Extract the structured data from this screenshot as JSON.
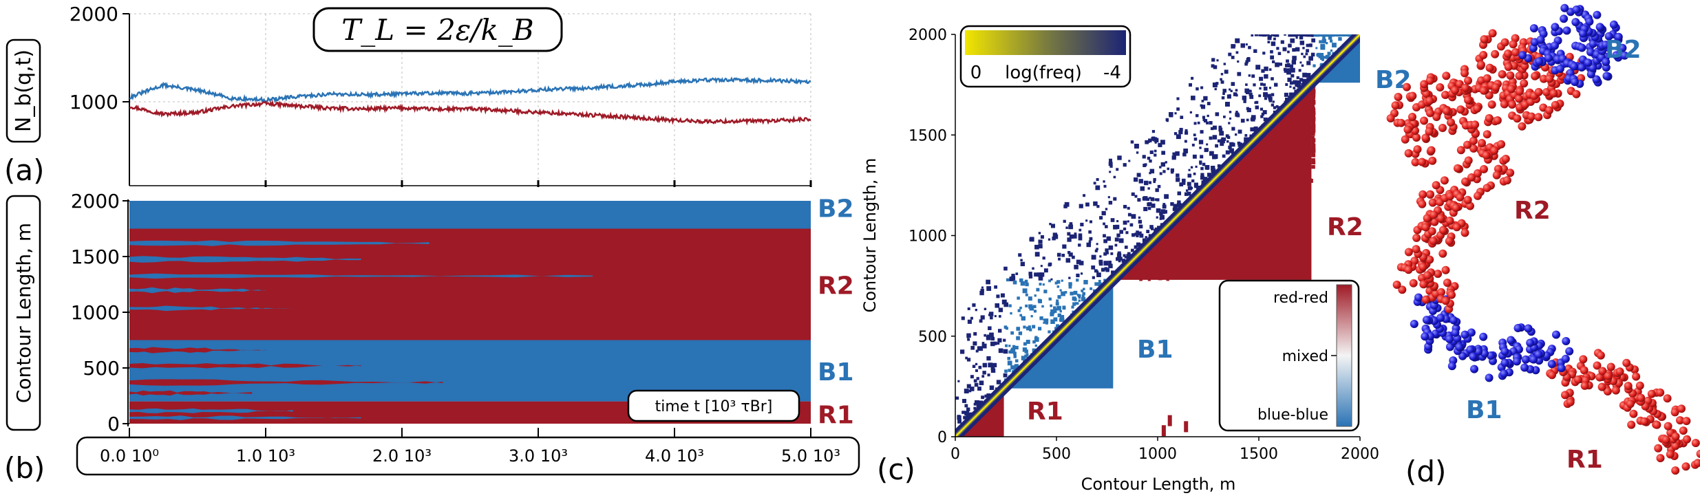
{
  "formula": {
    "title": "T_L = 2ε/k_B"
  },
  "panel_labels": {
    "a": "(a)",
    "b": "(b)",
    "c": "(c)",
    "d": "(d)"
  },
  "colors": {
    "red": "#9e1a26",
    "blue": "#2a73b5",
    "dark_navy": "#1c2475",
    "yellow": "#f2e600",
    "sim_red": "#e0201e",
    "sim_blue": "#1e1ed8"
  },
  "chart_data": [
    {
      "id": "a",
      "type": "line",
      "ylabel": "N_b(q,t)",
      "ylim": [
        0,
        2000
      ],
      "yticks": [
        "2000",
        "1000"
      ],
      "xlim": [
        0,
        5000
      ],
      "grid": true,
      "series": [
        {
          "name": "blue",
          "x": [
            0,
            250,
            500,
            750,
            1000,
            1250,
            1500,
            1750,
            2000,
            2250,
            2500,
            2750,
            3000,
            3250,
            3500,
            3750,
            4000,
            4250,
            4500,
            4750,
            5000
          ],
          "values": [
            1050,
            1190,
            1130,
            1040,
            1020,
            1060,
            1090,
            1080,
            1090,
            1100,
            1095,
            1110,
            1135,
            1150,
            1170,
            1190,
            1230,
            1250,
            1245,
            1240,
            1230
          ]
        },
        {
          "name": "red",
          "x": [
            0,
            250,
            500,
            750,
            1000,
            1250,
            1500,
            1750,
            2000,
            2250,
            2500,
            2750,
            3000,
            3250,
            3500,
            3750,
            4000,
            4250,
            4500,
            4750,
            5000
          ],
          "values": [
            950,
            860,
            880,
            950,
            980,
            950,
            925,
            920,
            930,
            915,
            920,
            900,
            880,
            860,
            840,
            815,
            790,
            775,
            780,
            785,
            800
          ]
        }
      ]
    },
    {
      "id": "b",
      "type": "heatmap",
      "ylabel": "Contour Length, m",
      "ylim": [
        0,
        2000
      ],
      "yticks": [
        "2000",
        "1500",
        "1000",
        "500",
        "0"
      ],
      "xlim": [
        0,
        5000
      ],
      "xticks": [
        "0.0 10⁰",
        "1.0 10³",
        "2.0 10³",
        "3.0 10³",
        "4.0 10³",
        "5.0 10³"
      ],
      "xlabel": "time t [10³ τBr]",
      "domains": [
        {
          "name": "R1",
          "from": 0,
          "to": 200,
          "color": "red"
        },
        {
          "name": "B1",
          "from": 200,
          "to": 750,
          "color": "blue"
        },
        {
          "name": "R2",
          "from": 750,
          "to": 1750,
          "color": "red"
        },
        {
          "name": "B2",
          "from": 1750,
          "to": 2000,
          "color": "blue"
        }
      ],
      "stripes": [
        {
          "color": "blue",
          "y": 1820,
          "h": 40,
          "tend": 1300
        },
        {
          "color": "blue",
          "y": 1600,
          "h": 40,
          "tend": 2200
        },
        {
          "color": "blue",
          "y": 1450,
          "h": 50,
          "tend": 1700
        },
        {
          "color": "blue",
          "y": 1310,
          "h": 30,
          "tend": 3400
        },
        {
          "color": "blue",
          "y": 1180,
          "h": 35,
          "tend": 1000
        },
        {
          "color": "blue",
          "y": 1020,
          "h": 30,
          "tend": 1200
        },
        {
          "color": "red",
          "y": 640,
          "h": 40,
          "tend": 1000
        },
        {
          "color": "red",
          "y": 500,
          "h": 40,
          "tend": 1700
        },
        {
          "color": "red",
          "y": 350,
          "h": 40,
          "tend": 2300
        },
        {
          "color": "red",
          "y": 260,
          "h": 30,
          "tend": 900
        },
        {
          "color": "blue",
          "y": 100,
          "h": 30,
          "tend": 1200
        },
        {
          "color": "blue",
          "y": 40,
          "h": 25,
          "tend": 1700
        }
      ]
    },
    {
      "id": "c",
      "type": "heatmap",
      "xlabel": "Contour Length, m",
      "ylabel": "Contour Length, m",
      "xlim": [
        0,
        2000
      ],
      "ylim": [
        0,
        2000
      ],
      "xticks": [
        "0",
        "500",
        "1000",
        "1500",
        "2000"
      ],
      "yticks": [
        "0",
        "500",
        "1000",
        "1500",
        "2000"
      ],
      "colorbar_top": {
        "label": "log(freq)",
        "min": "0",
        "max": "-4"
      },
      "colorbar_side": {
        "top": "red-red",
        "mid": "mixed",
        "bottom": "blue-blue"
      },
      "blocks": [
        {
          "name": "R1",
          "from": 0,
          "to": 240,
          "color": "red"
        },
        {
          "name": "B1",
          "from": 240,
          "to": 780,
          "color": "blue"
        },
        {
          "name": "R2",
          "from": 780,
          "to": 1760,
          "color": "red"
        },
        {
          "name": "B2",
          "from": 1760,
          "to": 2000,
          "color": "blue"
        }
      ]
    }
  ],
  "panel_d": {
    "labels": [
      "B2",
      "R2",
      "B1",
      "R1"
    ]
  }
}
